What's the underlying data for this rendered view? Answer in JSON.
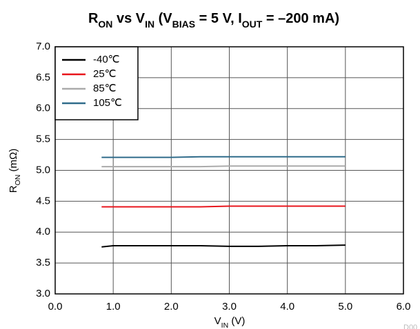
{
  "chart_data": {
    "type": "line",
    "title": [
      {
        "text": "R"
      },
      {
        "text": "ON",
        "sub": true
      },
      {
        "text": " vs V"
      },
      {
        "text": "IN",
        "sub": true
      },
      {
        "text": " (V"
      },
      {
        "text": "BIAS",
        "sub": true
      },
      {
        "text": " = 5 V, I"
      },
      {
        "text": "OUT",
        "sub": true
      },
      {
        "text": " = –200 mA)"
      }
    ],
    "x_label": [
      {
        "text": "V"
      },
      {
        "text": "IN",
        "sub": true
      },
      {
        "text": " (V)"
      }
    ],
    "y_label": [
      {
        "text": "R"
      },
      {
        "text": "ON",
        "sub": true
      },
      {
        "text": " (mΩ)"
      }
    ],
    "note": "D00",
    "x": [
      0.8,
      1.0,
      1.5,
      2.0,
      2.5,
      3.0,
      3.5,
      4.0,
      4.5,
      5.0
    ],
    "series": [
      {
        "name": "-40℃",
        "color": "#000000",
        "values": [
          3.76,
          3.78,
          3.78,
          3.78,
          3.78,
          3.77,
          3.77,
          3.78,
          3.78,
          3.79
        ]
      },
      {
        "name": "25℃",
        "color": "#e8141b",
        "values": [
          4.41,
          4.41,
          4.41,
          4.41,
          4.41,
          4.42,
          4.42,
          4.42,
          4.42,
          4.42
        ]
      },
      {
        "name": "85℃",
        "color": "#aaaaaa",
        "values": [
          5.06,
          5.06,
          5.06,
          5.06,
          5.06,
          5.07,
          5.07,
          5.07,
          5.07,
          5.07
        ]
      },
      {
        "name": "105℃",
        "color": "#2f6b8a",
        "values": [
          5.21,
          5.21,
          5.21,
          5.21,
          5.22,
          5.22,
          5.22,
          5.22,
          5.22,
          5.22
        ]
      }
    ],
    "xlim": [
      0,
      6
    ],
    "xticks": [
      {
        "value": 0,
        "label": "0.0"
      },
      {
        "value": 1,
        "label": "1.0"
      },
      {
        "value": 2,
        "label": "2.0"
      },
      {
        "value": 3,
        "label": "3.0"
      },
      {
        "value": 4,
        "label": "4.0"
      },
      {
        "value": 5,
        "label": "5.0"
      },
      {
        "value": 6,
        "label": "6.0"
      }
    ],
    "ylim": [
      3,
      7
    ],
    "yticks": [
      {
        "value": 3,
        "label": "3.0"
      },
      3.5,
      {
        "value": 4,
        "label": "4.0"
      },
      4.5,
      {
        "value": 5,
        "label": "5.0"
      },
      5.5,
      {
        "value": 6,
        "label": "6.0"
      },
      6.5,
      {
        "value": 7,
        "label": "7.0"
      }
    ],
    "grid": true,
    "legend": "upper-left"
  }
}
